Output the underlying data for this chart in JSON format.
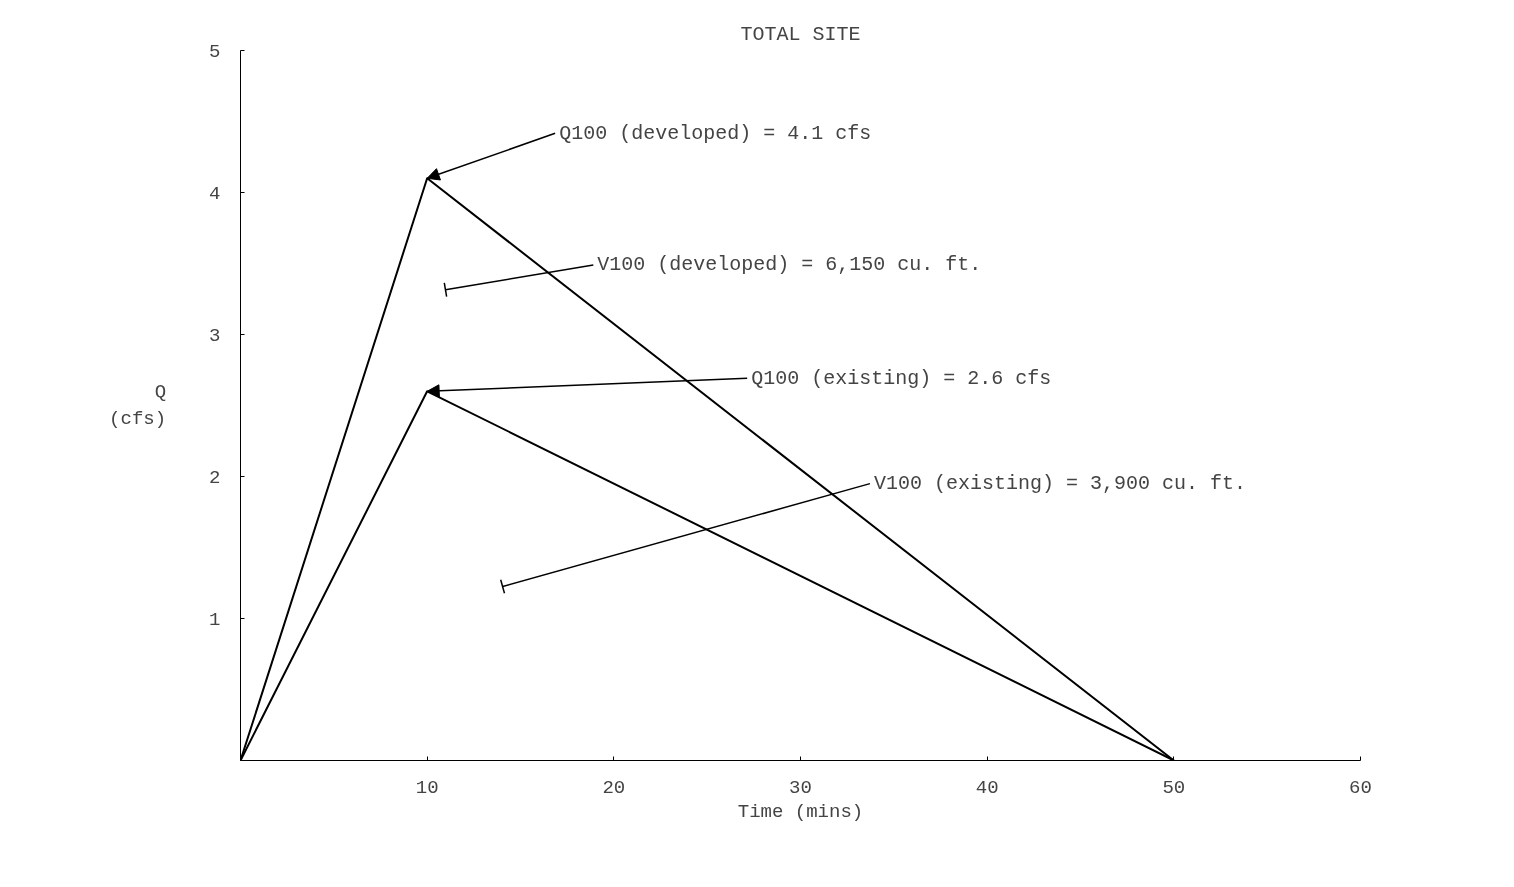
{
  "chart_data": {
    "type": "line",
    "title": "TOTAL SITE",
    "xlabel": "Time (mins)",
    "ylabel": "Q\n(cfs)",
    "x": [
      0,
      10,
      50
    ],
    "series": [
      {
        "values": [
          0,
          4.1,
          0
        ],
        "color": "#000000"
      },
      {
        "values": [
          0,
          2.6,
          0
        ],
        "color": "#000000"
      }
    ],
    "xlim": [
      0,
      60
    ],
    "ylim": [
      0,
      5
    ],
    "xticks": [
      {
        "value": 0,
        "label": null
      },
      10,
      20,
      30,
      40,
      50,
      60
    ],
    "yticks": [
      {
        "value": 0,
        "label": null
      },
      1,
      2,
      3,
      4,
      5
    ],
    "grid": false,
    "line_style": "solid",
    "annotations": [
      {
        "text": "Q100 (developed) = 4.1 cfs",
        "x": 10,
        "y": 4.1
      },
      "V100 (developed) = 6,150 cu. ft.",
      {
        "text": "Q100 (existing) = 2.6 cfs",
        "x": 10,
        "y": 2.6
      },
      "V100 (existing) = 3,900 cu. ft."
    ]
  }
}
